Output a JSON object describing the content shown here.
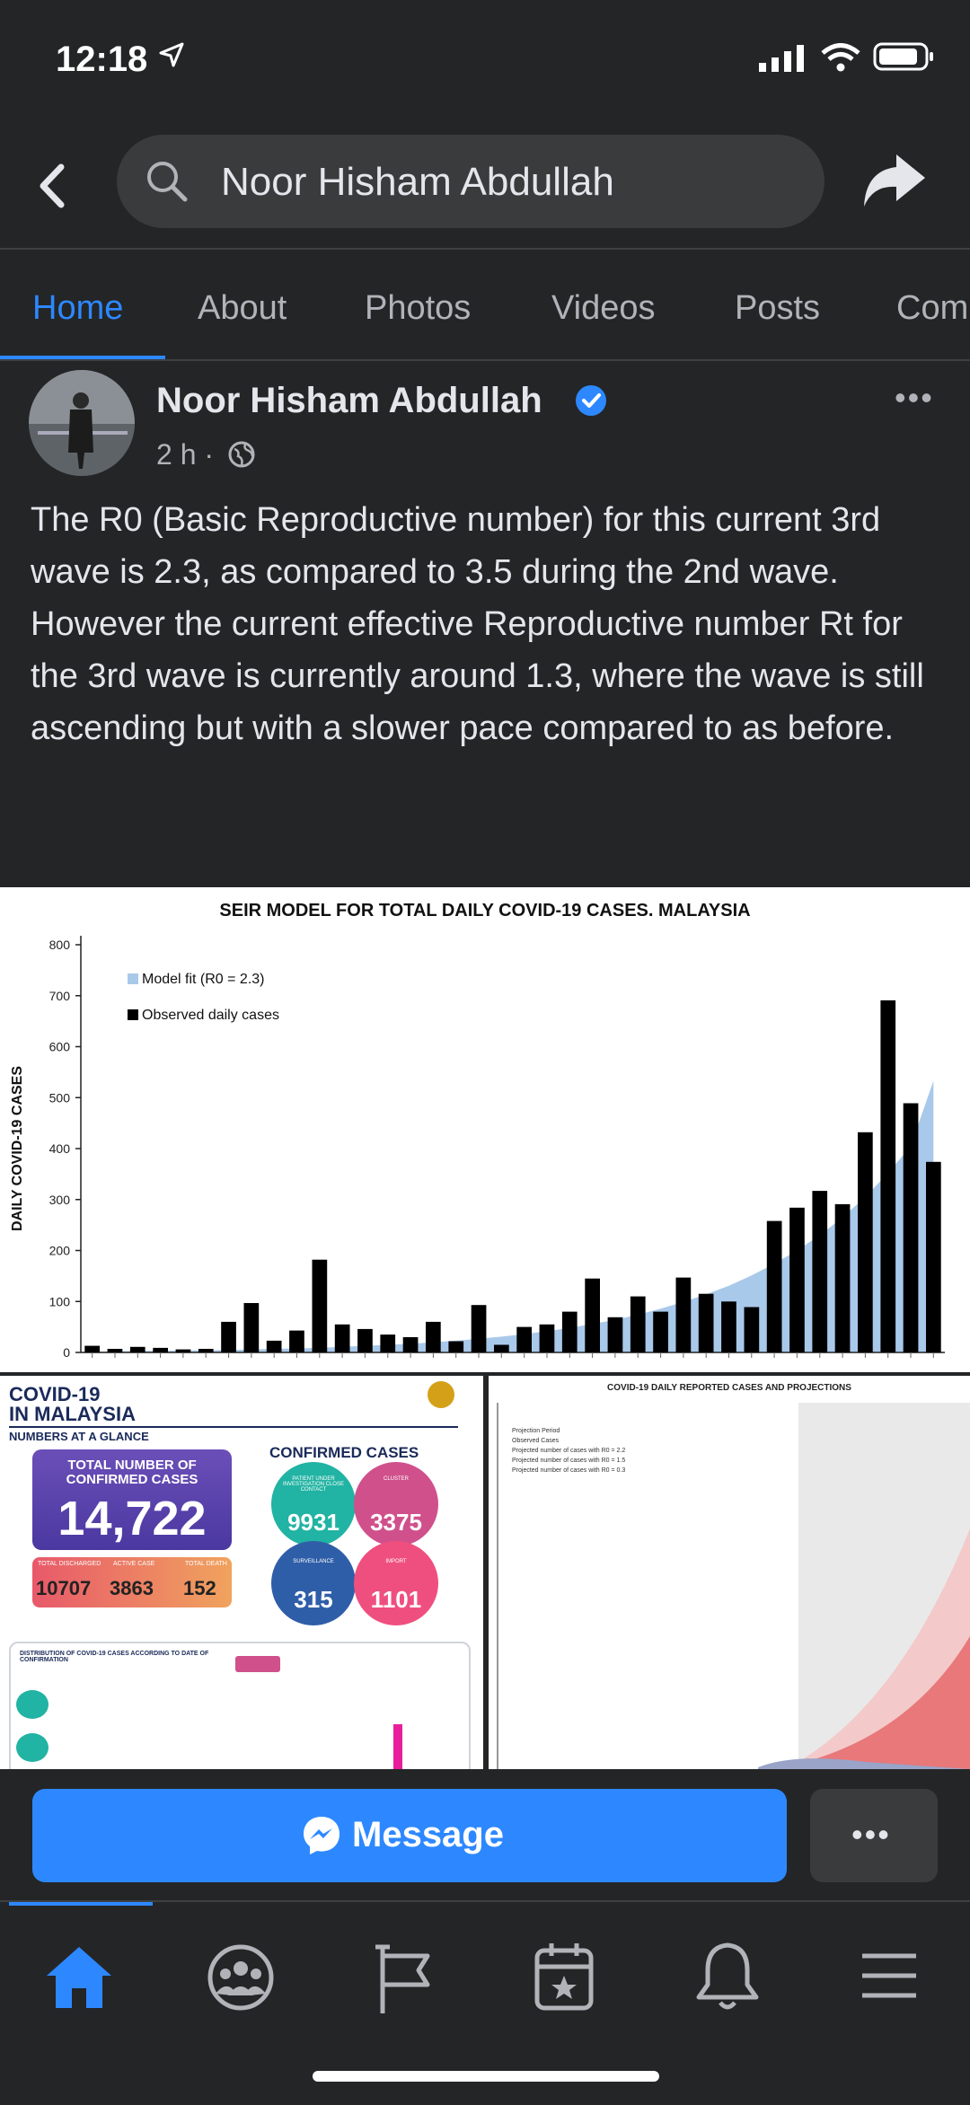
{
  "status": {
    "time": "12:18"
  },
  "search": {
    "query": "Noor Hisham Abdullah"
  },
  "tabs": [
    {
      "label": "Home"
    },
    {
      "label": "About"
    },
    {
      "label": "Photos"
    },
    {
      "label": "Videos"
    },
    {
      "label": "Posts"
    },
    {
      "label": "Com"
    }
  ],
  "post": {
    "author": "Noor Hisham Abdullah",
    "time": "2 h ·",
    "more": "•••",
    "text": "The R0 (Basic Reproductive number) for this current 3rd wave is 2.3, as compared to 3.5 during the 2nd wave. However the current effective Reproductive number Rt for the 3rd wave is currently around 1.3, where the wave is still ascending but with a slower pace compared to as before."
  },
  "chart_data": {
    "type": "bar",
    "title": "SEIR MODEL FOR TOTAL DAILY COVID-19 CASES. MALAYSIA",
    "ylabel": "DAILY COVID-19 CASES",
    "ylim": [
      0,
      800
    ],
    "yticks": [
      "0",
      "100",
      "200",
      "300",
      "400",
      "500",
      "600",
      "700",
      "800"
    ],
    "legend": [
      {
        "label": "Model fit (R0 = 2.3)",
        "color": "#a9c9ea"
      },
      {
        "label": "Observed daily cases",
        "color": "#000000"
      }
    ],
    "series": [
      {
        "name": "Observed daily cases",
        "values": [
          13,
          7,
          11,
          9,
          6,
          7,
          60,
          97,
          23,
          43,
          182,
          55,
          46,
          35,
          30,
          60,
          22,
          93,
          15,
          50,
          55,
          80,
          145,
          69,
          110,
          80,
          147,
          115,
          100,
          89,
          258,
          284,
          317,
          291,
          432,
          691,
          489,
          374
        ]
      },
      {
        "name": "Model fit (R0 = 2.3)",
        "values": [
          2,
          2,
          3,
          3,
          4,
          4,
          5,
          6,
          7,
          8,
          9,
          11,
          13,
          15,
          17,
          20,
          23,
          27,
          31,
          36,
          42,
          48,
          56,
          64,
          74,
          86,
          99,
          114,
          131,
          151,
          174,
          200,
          230,
          265,
          305,
          352,
          405,
          533
        ]
      }
    ]
  },
  "infographic": {
    "title1": "COVID-19",
    "title2": "IN MALAYSIA",
    "subtitle": "NUMBERS AT A GLANCE",
    "total_label": "TOTAL NUMBER OF CONFIRMED CASES",
    "total": "14,722",
    "discharged_label": "TOTAL DISCHARGED",
    "discharged": "10707",
    "active_label": "ACTIVE CASE",
    "active": "3863",
    "death_label": "TOTAL DEATH",
    "death": "152",
    "confirmed_header": "CONFIRMED CASES",
    "pui_label": "PATIENT UNDER INVESTIGATION CLOSE CONTACT",
    "pui": "9931",
    "cluster_label": "CLUSTER",
    "cluster": "3375",
    "surveillance_label": "SURVEILLANCE",
    "surveillance": "315",
    "import_label": "IMPORT",
    "import": "1101",
    "dist_title": "DISTRIBUTION OF COVID-19 CASES ACCORDING TO DATE OF CONFIRMATION"
  },
  "projection": {
    "title": "COVID-19 DAILY REPORTED CASES AND PROJECTIONS",
    "legend": [
      "Projection Period",
      "Observed Cases",
      "Projected number of cases with R0 = 2.2",
      "Projected number of cases with R0 = 1.5",
      "Projected number of cases with R0 = 0.3"
    ]
  },
  "actions": {
    "message": "Message",
    "more": "•••"
  }
}
